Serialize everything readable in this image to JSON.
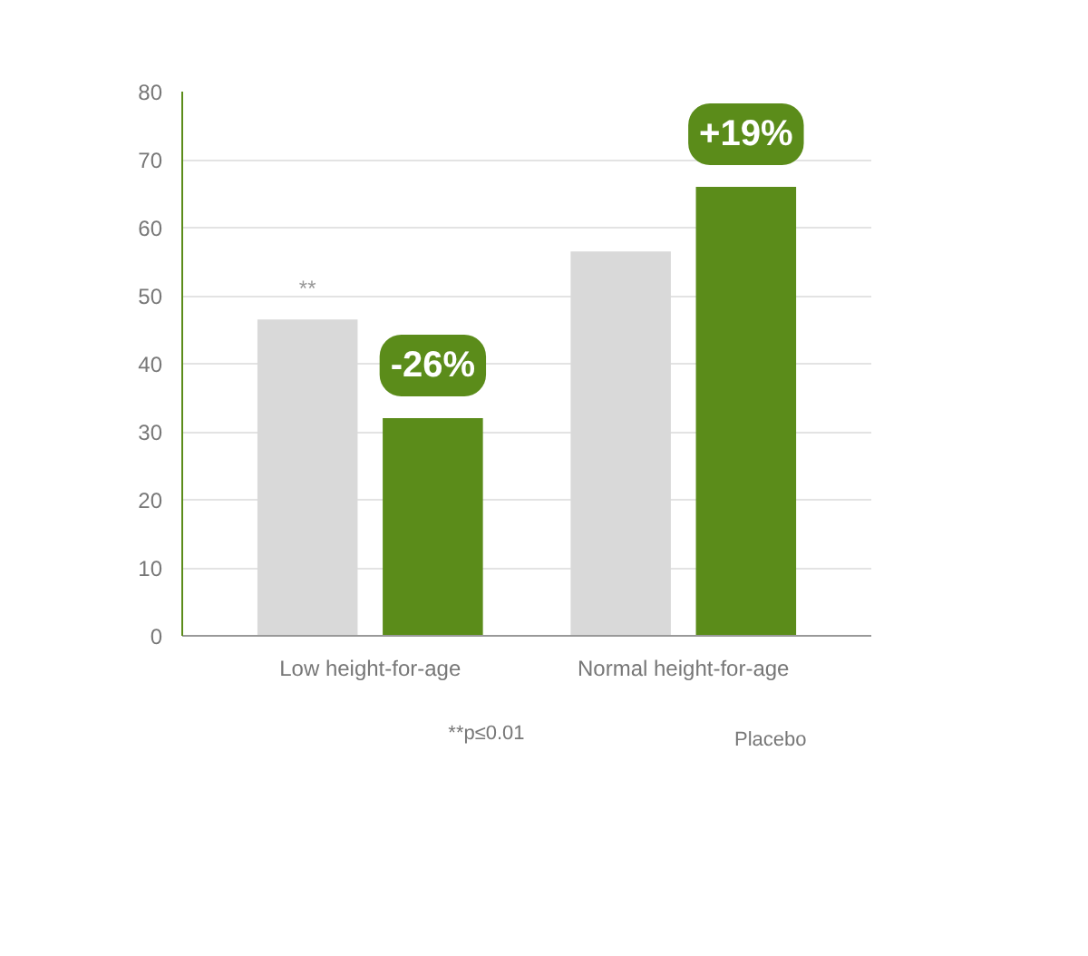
{
  "chart_data": {
    "type": "bar",
    "categories": [
      "Low height-for-age",
      "Normal height-for-age"
    ],
    "series": [
      {
        "name": "Placebo",
        "color": "#d9d9d9",
        "values": [
          46.5,
          56.5
        ]
      },
      {
        "color": "#5b8c1a",
        "values": [
          32,
          66
        ]
      }
    ],
    "ylim": [
      0,
      80
    ],
    "yticks": [
      0,
      10,
      20,
      30,
      40,
      50,
      60,
      70,
      80
    ],
    "grid": "y",
    "legend": "bottom",
    "annotations": [
      "**",
      "-26%",
      "+19%",
      "**p≤0.01"
    ]
  }
}
